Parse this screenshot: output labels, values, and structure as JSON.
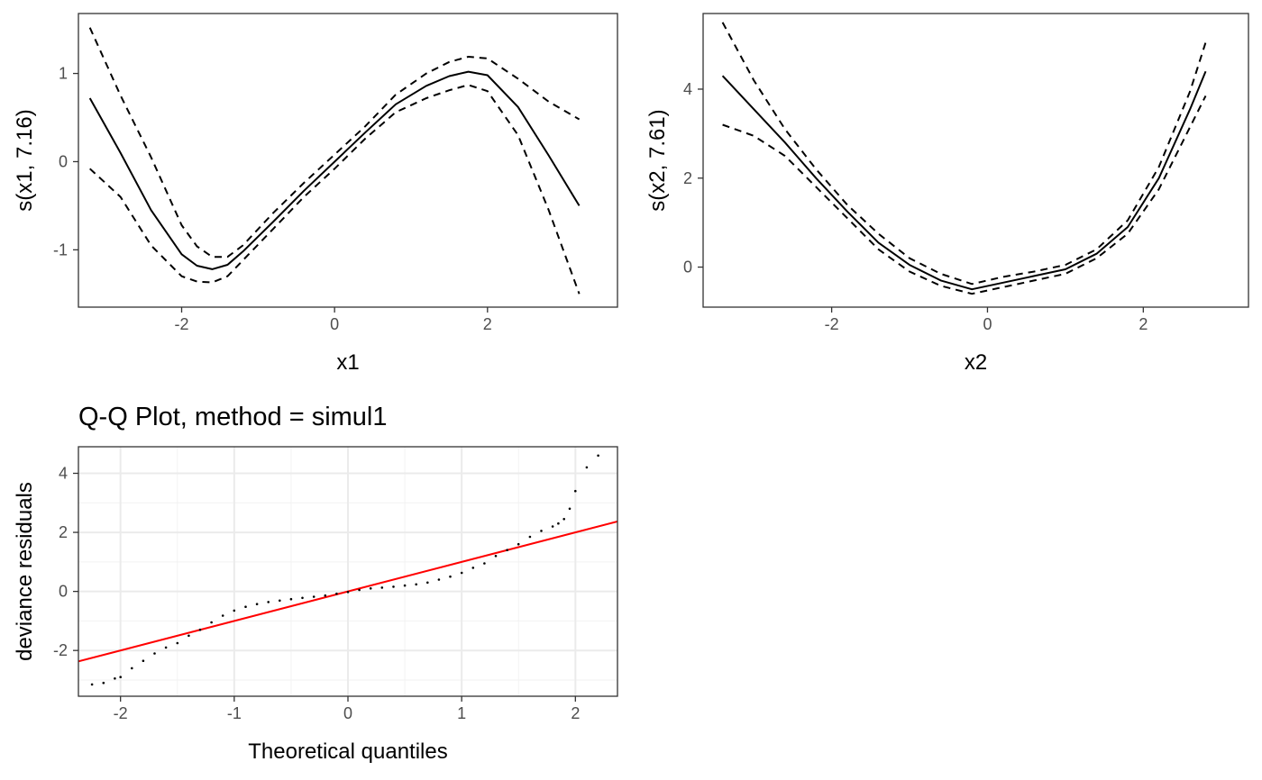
{
  "chart_data": [
    {
      "type": "line",
      "xlabel": "x1",
      "ylabel": "s(x1, 7.16)",
      "xlim": [
        -3.35,
        3.7
      ],
      "ylim": [
        -1.65,
        1.68
      ],
      "xticks": [
        -2,
        0,
        2
      ],
      "xtick_labels": [
        "-2",
        "0",
        "2"
      ],
      "yticks": [
        -1,
        0,
        1
      ],
      "ytick_labels": [
        "-1",
        "0",
        "1"
      ],
      "grid": false,
      "x": [
        -3.2,
        -2.8,
        -2.4,
        -2.0,
        -1.8,
        -1.6,
        -1.4,
        -1.2,
        -0.8,
        -0.4,
        0.0,
        0.4,
        0.8,
        1.2,
        1.5,
        1.75,
        2.0,
        2.4,
        2.8,
        3.2
      ],
      "series": [
        {
          "values": [
            0.72,
            0.1,
            -0.55,
            -1.05,
            -1.18,
            -1.22,
            -1.17,
            -1.02,
            -0.68,
            -0.33,
            0.0,
            0.33,
            0.65,
            0.86,
            0.97,
            1.02,
            0.98,
            0.62,
            0.07,
            -0.5
          ],
          "style": "solid"
        },
        {
          "values": [
            1.52,
            0.75,
            0.05,
            -0.72,
            -0.96,
            -1.08,
            -1.08,
            -0.95,
            -0.58,
            -0.24,
            0.08,
            0.4,
            0.76,
            1.0,
            1.13,
            1.19,
            1.17,
            0.94,
            0.68,
            0.48
          ],
          "style": "dashed"
        },
        {
          "values": [
            -0.08,
            -0.4,
            -0.95,
            -1.3,
            -1.36,
            -1.37,
            -1.3,
            -1.12,
            -0.76,
            -0.4,
            -0.08,
            0.26,
            0.56,
            0.72,
            0.81,
            0.87,
            0.8,
            0.3,
            -0.55,
            -1.5
          ],
          "style": "dashed"
        }
      ]
    },
    {
      "type": "line",
      "xlabel": "x2",
      "ylabel": "s(x2, 7.61)",
      "xlim": [
        -3.65,
        3.35
      ],
      "ylim": [
        -0.9,
        5.7
      ],
      "xticks": [
        -2,
        0,
        2
      ],
      "xtick_labels": [
        "-2",
        "0",
        "2"
      ],
      "yticks": [
        0,
        2,
        4
      ],
      "ytick_labels": [
        "0",
        "2",
        "4"
      ],
      "grid": false,
      "x": [
        -3.4,
        -3.0,
        -2.6,
        -2.2,
        -1.8,
        -1.4,
        -1.0,
        -0.6,
        -0.2,
        0.2,
        0.6,
        1.0,
        1.4,
        1.8,
        2.2,
        2.6,
        2.8
      ],
      "series": [
        {
          "values": [
            4.3,
            3.55,
            2.8,
            2.0,
            1.25,
            0.55,
            0.05,
            -0.3,
            -0.5,
            -0.35,
            -0.2,
            -0.05,
            0.3,
            0.9,
            2.0,
            3.55,
            4.4
          ],
          "style": "solid"
        },
        {
          "values": [
            5.5,
            4.2,
            3.1,
            2.2,
            1.4,
            0.75,
            0.2,
            -0.15,
            -0.38,
            -0.22,
            -0.1,
            0.05,
            0.4,
            1.05,
            2.25,
            3.95,
            5.05
          ],
          "style": "dashed"
        },
        {
          "values": [
            3.2,
            2.95,
            2.5,
            1.8,
            1.1,
            0.4,
            -0.1,
            -0.42,
            -0.6,
            -0.45,
            -0.3,
            -0.15,
            0.2,
            0.75,
            1.75,
            3.15,
            3.85
          ],
          "style": "dashed"
        }
      ]
    },
    {
      "type": "scatter",
      "title": "Q-Q Plot, method = simul1",
      "xlabel": "Theoretical quantiles",
      "ylabel": "deviance residuals",
      "xlim": [
        -2.37,
        2.37
      ],
      "ylim": [
        -3.55,
        4.9
      ],
      "xticks": [
        -2,
        -1,
        0,
        1,
        2
      ],
      "xtick_labels": [
        "-2",
        "-1",
        "0",
        "1",
        "2"
      ],
      "yticks": [
        -2,
        0,
        2,
        4
      ],
      "ytick_labels": [
        "-2",
        "0",
        "2",
        "4"
      ],
      "grid": true,
      "reference_line": {
        "intercept": 0.0,
        "slope": 1.0,
        "color": "#ff0000"
      },
      "x": [
        -2.25,
        -2.15,
        -2.05,
        -2.0,
        -1.9,
        -1.8,
        -1.7,
        -1.6,
        -1.5,
        -1.4,
        -1.3,
        -1.2,
        -1.1,
        -1.0,
        -0.9,
        -0.8,
        -0.7,
        -0.6,
        -0.5,
        -0.4,
        -0.3,
        -0.2,
        -0.1,
        0.0,
        0.1,
        0.2,
        0.3,
        0.4,
        0.5,
        0.6,
        0.7,
        0.8,
        0.9,
        1.0,
        1.1,
        1.2,
        1.3,
        1.4,
        1.5,
        1.6,
        1.7,
        1.8,
        1.85,
        1.9,
        1.95,
        2.0,
        2.1,
        2.2
      ],
      "y": [
        -3.15,
        -3.1,
        -2.95,
        -2.9,
        -2.6,
        -2.35,
        -2.1,
        -1.9,
        -1.75,
        -1.5,
        -1.3,
        -1.05,
        -0.82,
        -0.65,
        -0.52,
        -0.43,
        -0.36,
        -0.31,
        -0.26,
        -0.22,
        -0.18,
        -0.14,
        -0.08,
        -0.02,
        0.05,
        0.1,
        0.13,
        0.16,
        0.2,
        0.24,
        0.3,
        0.4,
        0.5,
        0.63,
        0.8,
        0.95,
        1.2,
        1.4,
        1.6,
        1.85,
        2.05,
        2.2,
        2.3,
        2.45,
        2.8,
        3.4,
        4.2,
        4.6
      ],
      "series_color": "#000000"
    }
  ]
}
